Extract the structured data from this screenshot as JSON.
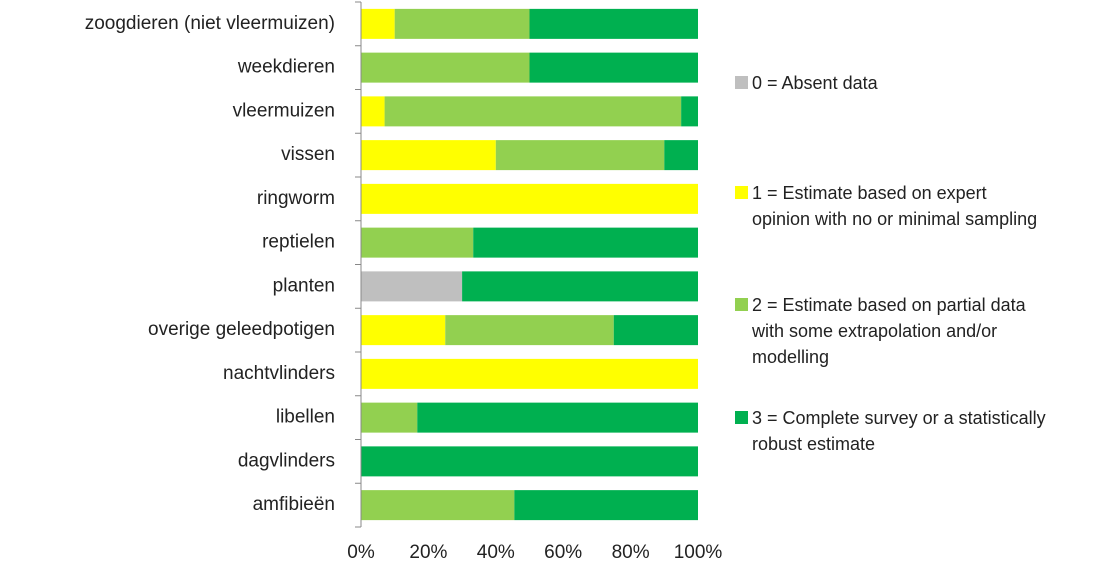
{
  "chart_data": {
    "type": "stacked_bar_horizontal",
    "categories": [
      "zoogdieren (niet vleermuizen)",
      "weekdieren",
      "vleermuizen",
      "vissen",
      "ringworm",
      "reptielen",
      "planten",
      "overige geleedpotigen",
      "nachtvlinders",
      "libellen",
      "dagvlinders",
      "amfibieën"
    ],
    "series": [
      {
        "name": "0 = Absent data",
        "color": "#bfbfbf",
        "values": [
          0,
          0,
          0,
          0,
          0,
          0,
          30,
          0,
          0,
          0,
          0,
          0
        ]
      },
      {
        "name": "1 = Estimate based on expert opinion with no or minimal sampling",
        "color": "#ffff00",
        "values": [
          10,
          0,
          7,
          40,
          100,
          0,
          0,
          25,
          100,
          0,
          0,
          0
        ]
      },
      {
        "name": "2 = Estimate based on partial data with some extrapolation and/or modelling",
        "color": "#92d050",
        "values": [
          40,
          50,
          88,
          50,
          0,
          33.3,
          0,
          50,
          0,
          16.7,
          0,
          45.5
        ]
      },
      {
        "name": "3 = Complete survey or a statistically robust estimate",
        "color": "#00b050",
        "values": [
          50,
          50,
          5,
          10,
          0,
          66.7,
          70,
          25,
          0,
          83.3,
          100,
          54.5
        ]
      }
    ],
    "xlim": [
      0,
      100
    ],
    "xticks": [
      {
        "value": 0,
        "label": "0%"
      },
      {
        "value": 20,
        "label": "20%"
      },
      {
        "value": 40,
        "label": "40%"
      },
      {
        "value": 60,
        "label": "60%"
      },
      {
        "value": 80,
        "label": "80%"
      },
      {
        "value": 100,
        "label": "100%"
      }
    ],
    "legend": "right"
  }
}
